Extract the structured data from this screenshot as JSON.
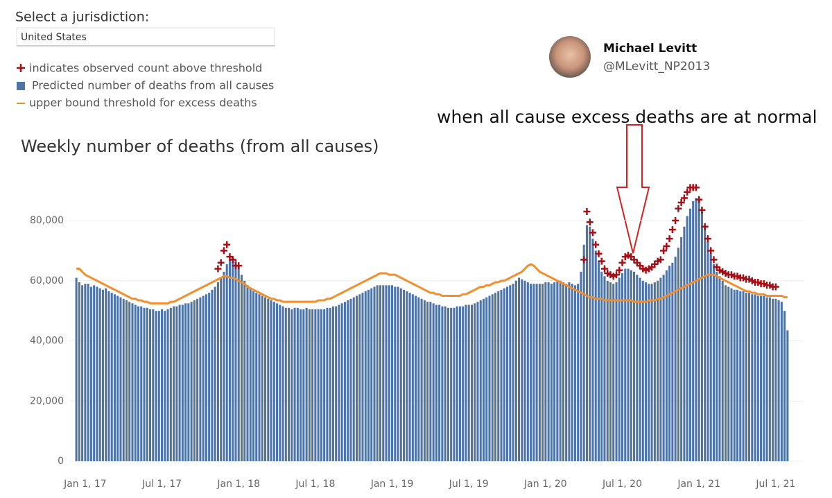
{
  "jurisdiction_label": "Select a jurisdiction:",
  "jurisdiction": "United States",
  "tweet": {
    "name": "Michael Levitt",
    "handle": "@MLevitt_NP2013"
  },
  "chart_data": {
    "type": "bar",
    "title": "Weekly number of deaths (from all causes)",
    "annotation": "when all cause excess deaths are at normal",
    "categories": [
      null,
      null,
      null,
      "Jan 1, 17",
      null,
      null,
      null,
      null,
      null,
      null,
      null,
      null,
      null,
      null,
      null,
      null,
      null,
      null,
      null,
      null,
      null,
      null,
      null,
      null,
      null,
      null,
      null,
      null,
      null,
      "Jul 1, 17",
      null,
      null,
      null,
      null,
      null,
      null,
      null,
      null,
      null,
      null,
      null,
      null,
      null,
      null,
      null,
      null,
      null,
      null,
      null,
      null,
      null,
      null,
      null,
      null,
      null,
      "Jan 1, 18",
      null,
      null,
      null,
      null,
      null,
      null,
      null,
      null,
      null,
      null,
      null,
      null,
      null,
      null,
      null,
      null,
      null,
      null,
      null,
      null,
      null,
      null,
      null,
      null,
      null,
      "Jul 1, 18",
      null,
      null,
      null,
      null,
      null,
      null,
      null,
      null,
      null,
      null,
      null,
      null,
      null,
      null,
      null,
      null,
      null,
      null,
      null,
      null,
      null,
      null,
      null,
      null,
      null,
      "Jan 1, 19",
      null,
      null,
      null,
      null,
      null,
      null,
      null,
      null,
      null,
      null,
      null,
      null,
      null,
      null,
      null,
      null,
      null,
      null,
      null,
      null,
      null,
      null,
      null,
      null,
      null,
      "Jul 1, 19",
      null,
      null,
      null,
      null,
      null,
      null,
      null,
      null,
      null,
      null,
      null,
      null,
      null,
      null,
      null,
      null,
      null,
      null,
      null,
      null,
      null,
      null,
      null,
      null,
      null,
      "Jan 1, 20",
      null,
      null,
      null,
      null,
      null,
      null,
      null,
      null,
      null,
      null,
      null,
      null,
      null,
      null,
      null,
      null,
      null,
      null,
      null,
      null,
      null,
      null,
      null,
      null,
      null,
      "Jul 1, 20",
      null,
      null,
      null,
      null,
      null,
      null,
      null,
      null,
      null,
      null,
      null,
      null,
      null,
      null,
      null,
      null,
      null,
      null,
      null,
      null,
      null,
      null,
      null,
      null,
      null,
      "Jan 1, 21",
      null,
      null,
      null,
      null,
      null,
      null,
      null,
      null,
      null,
      null,
      null,
      null,
      null,
      null,
      null,
      null,
      null,
      null,
      null,
      null,
      null,
      null,
      null,
      null,
      null,
      "Jul 1, 21",
      null,
      null,
      null,
      null
    ],
    "series": [
      {
        "name": "indicates observed count above threshold",
        "type": "scatter",
        "color": "#a50f15",
        "values": [
          null,
          null,
          null,
          null,
          null,
          null,
          null,
          null,
          null,
          null,
          null,
          null,
          null,
          null,
          null,
          null,
          null,
          null,
          null,
          null,
          null,
          null,
          null,
          null,
          null,
          null,
          null,
          null,
          null,
          null,
          null,
          null,
          null,
          null,
          null,
          null,
          null,
          null,
          null,
          null,
          null,
          null,
          null,
          null,
          null,
          null,
          null,
          null,
          64000,
          66000,
          70000,
          72000,
          68000,
          67000,
          65000,
          65000,
          null,
          null,
          null,
          null,
          null,
          null,
          null,
          null,
          null,
          null,
          null,
          null,
          null,
          null,
          null,
          null,
          null,
          null,
          null,
          null,
          null,
          null,
          null,
          null,
          null,
          null,
          null,
          null,
          null,
          null,
          null,
          null,
          null,
          null,
          null,
          null,
          null,
          null,
          null,
          null,
          null,
          null,
          null,
          null,
          null,
          null,
          null,
          null,
          null,
          null,
          null,
          null,
          null,
          null,
          null,
          null,
          null,
          null,
          null,
          null,
          null,
          null,
          null,
          null,
          null,
          null,
          null,
          null,
          null,
          null,
          null,
          null,
          null,
          null,
          null,
          null,
          null,
          null,
          null,
          null,
          null,
          null,
          null,
          null,
          null,
          null,
          null,
          null,
          null,
          null,
          null,
          null,
          null,
          null,
          null,
          null,
          null,
          null,
          null,
          null,
          null,
          null,
          null,
          null,
          null,
          null,
          null,
          null,
          null,
          null,
          null,
          null,
          null,
          null,
          null,
          null,
          67000,
          83000,
          79500,
          76000,
          72000,
          69000,
          66500,
          64000,
          62500,
          62000,
          61500,
          62000,
          63500,
          66000,
          68000,
          68500,
          68000,
          67000,
          66000,
          65000,
          64000,
          63500,
          64000,
          64500,
          65500,
          66500,
          67000,
          70000,
          71500,
          74000,
          77000,
          80000,
          84000,
          86000,
          87500,
          89500,
          91000,
          91000,
          91000,
          87000,
          83500,
          78000,
          74000,
          70000,
          67000,
          64500,
          63500,
          63000,
          62500,
          62000,
          62000,
          61500,
          61500,
          61000,
          61000,
          60500,
          60500,
          60000,
          59500,
          59500,
          59000,
          59000,
          58500,
          58500,
          58000,
          58000,
          null,
          null,
          null,
          null
        ]
      },
      {
        "name": "Predicted number of deaths from all causes",
        "type": "bar",
        "color": "#4e74a6",
        "values": [
          61000,
          59500,
          58500,
          59000,
          59000,
          58000,
          58500,
          58000,
          57500,
          57000,
          57500,
          56500,
          56000,
          55500,
          55000,
          54500,
          54000,
          53500,
          53000,
          52500,
          52000,
          51500,
          51500,
          51000,
          51000,
          50500,
          50500,
          50000,
          50000,
          50500,
          50000,
          50500,
          51000,
          51500,
          51500,
          52000,
          52000,
          52500,
          52500,
          53000,
          53500,
          54000,
          54500,
          55000,
          55500,
          56000,
          57000,
          58000,
          59500,
          61000,
          63000,
          65500,
          67000,
          68000,
          67000,
          65000,
          62000,
          60000,
          58500,
          57500,
          56500,
          56000,
          55500,
          55000,
          54500,
          54000,
          53500,
          53000,
          52500,
          52000,
          51500,
          51000,
          51000,
          50500,
          51000,
          51000,
          50500,
          50500,
          51000,
          50500,
          50500,
          50500,
          50500,
          50500,
          50500,
          51000,
          51000,
          51500,
          51500,
          52000,
          52500,
          53000,
          53500,
          54000,
          54500,
          55000,
          55500,
          56000,
          56500,
          57000,
          57500,
          58000,
          58500,
          58500,
          58500,
          58500,
          58500,
          58500,
          58000,
          58000,
          57500,
          57000,
          56500,
          56000,
          55500,
          55000,
          54500,
          54000,
          53500,
          53000,
          53000,
          52500,
          52000,
          52000,
          51500,
          51500,
          51000,
          51000,
          51000,
          51500,
          51500,
          51500,
          52000,
          52000,
          52000,
          52500,
          53000,
          53500,
          54000,
          54500,
          55000,
          55500,
          56000,
          56500,
          57000,
          57500,
          58000,
          58500,
          59000,
          60000,
          61000,
          60500,
          60000,
          59500,
          59000,
          59000,
          59000,
          59000,
          59000,
          59500,
          59500,
          59000,
          59500,
          60000,
          60000,
          59500,
          59000,
          59500,
          59000,
          58500,
          59000,
          63000,
          72000,
          78500,
          78000,
          74000,
          70000,
          66500,
          63000,
          61500,
          60000,
          59500,
          59000,
          59500,
          61000,
          62500,
          64000,
          64000,
          63500,
          63000,
          62000,
          61000,
          60000,
          59500,
          59000,
          59000,
          59500,
          60000,
          61000,
          62000,
          63500,
          65000,
          66000,
          68000,
          71000,
          74500,
          78000,
          81500,
          84000,
          86500,
          87500,
          87000,
          83000,
          78000,
          73000,
          69000,
          65500,
          63000,
          61500,
          60000,
          58500,
          58000,
          57500,
          57000,
          57000,
          56500,
          56500,
          56000,
          56000,
          55500,
          55500,
          55000,
          55000,
          55000,
          54500,
          54500,
          54000,
          54000,
          53500,
          53000,
          50000,
          43500
        ]
      },
      {
        "name": "upper bound threshold for excess deaths",
        "type": "line",
        "color": "#f28e2b",
        "values": [
          64000,
          64000,
          63000,
          62000,
          61500,
          61000,
          60500,
          60000,
          59500,
          59000,
          58500,
          58000,
          57500,
          57000,
          56500,
          56000,
          55500,
          55000,
          54500,
          54000,
          54000,
          53500,
          53500,
          53000,
          53000,
          52500,
          52500,
          52500,
          52500,
          52500,
          52500,
          52500,
          53000,
          53000,
          53500,
          54000,
          54500,
          55000,
          55500,
          56000,
          56500,
          57000,
          57500,
          58000,
          58500,
          59000,
          59500,
          60000,
          60500,
          61000,
          61500,
          61500,
          61000,
          61000,
          60500,
          60000,
          59500,
          59000,
          58000,
          57500,
          57000,
          56500,
          56000,
          55500,
          55000,
          54500,
          54000,
          54000,
          53500,
          53500,
          53000,
          53000,
          53000,
          53000,
          53000,
          53000,
          53000,
          53000,
          53000,
          53000,
          53000,
          53000,
          53500,
          53500,
          53500,
          54000,
          54000,
          54500,
          55000,
          55500,
          56000,
          56500,
          57000,
          57500,
          58000,
          58500,
          59000,
          59500,
          60000,
          60500,
          61000,
          61500,
          62000,
          62500,
          62500,
          62500,
          62000,
          62000,
          62000,
          61500,
          61000,
          60500,
          60000,
          59500,
          59000,
          58500,
          58000,
          57500,
          57000,
          56500,
          56000,
          56000,
          55500,
          55500,
          55000,
          55000,
          55000,
          55000,
          55000,
          55000,
          55000,
          55500,
          55500,
          56000,
          56500,
          57000,
          57500,
          58000,
          58000,
          58500,
          58500,
          59000,
          59500,
          59500,
          60000,
          60000,
          60500,
          61000,
          61500,
          62000,
          62500,
          63000,
          64000,
          65000,
          65500,
          65000,
          64000,
          63000,
          62500,
          62000,
          61500,
          61000,
          60500,
          60000,
          59500,
          59000,
          58500,
          58000,
          57500,
          57000,
          56500,
          56000,
          55500,
          55000,
          54500,
          54500,
          54000,
          54000,
          54000,
          53500,
          53500,
          53500,
          53500,
          53500,
          53500,
          53500,
          53500,
          53500,
          53500,
          53000,
          53000,
          53000,
          53000,
          53000,
          53500,
          53500,
          53500,
          54000,
          54000,
          54500,
          55000,
          55500,
          56000,
          56500,
          57000,
          57500,
          58000,
          58500,
          59000,
          59500,
          60000,
          60500,
          61000,
          61500,
          62000,
          62000,
          62000,
          61500,
          61000,
          60500,
          60000,
          59500,
          59000,
          58500,
          58000,
          57500,
          57000,
          56500,
          56500,
          56000,
          56000,
          55500,
          55500,
          55500,
          55000,
          55000,
          55000,
          55000,
          55000,
          55000,
          54500,
          54500
        ]
      }
    ],
    "ylim": [
      0,
      95000
    ],
    "yticks": [
      0,
      {
        "value": 20000,
        "label": "20,000"
      },
      {
        "value": 40000,
        "label": "40,000"
      },
      {
        "value": 60000,
        "label": "60,000"
      },
      {
        "value": 80000,
        "label": "80,000"
      }
    ],
    "grid": true
  }
}
